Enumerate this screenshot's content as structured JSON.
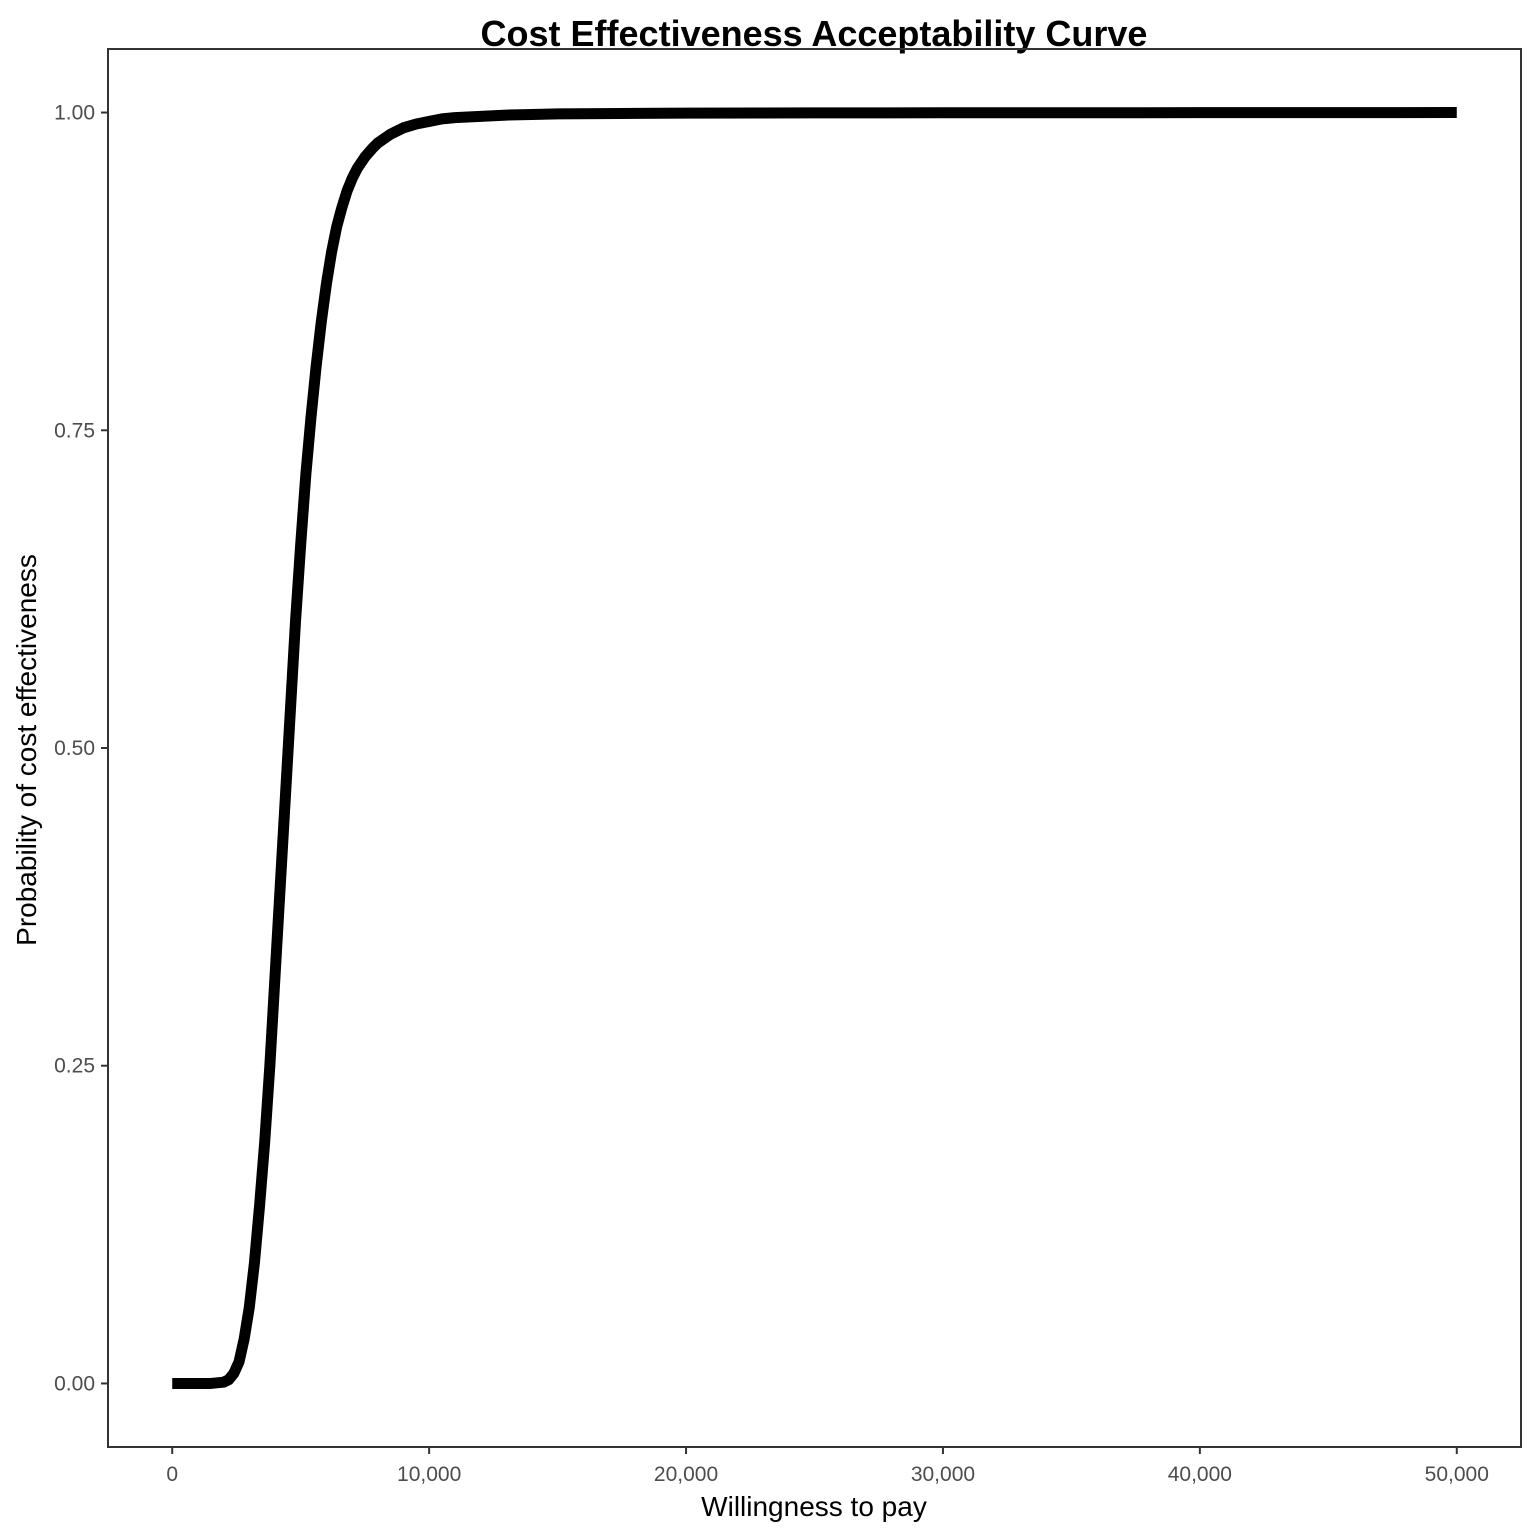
{
  "chart_data": {
    "type": "line",
    "title": "Cost Effectiveness Acceptability Curve",
    "xlabel": "Willingness to pay",
    "ylabel": "Probability of cost effectiveness",
    "xlim": [
      -2500,
      52500
    ],
    "ylim": [
      -0.05,
      1.05
    ],
    "x_ticks": [
      {
        "value": 0,
        "label": "0"
      },
      {
        "value": 10000,
        "label": "10,000"
      },
      {
        "value": 20000,
        "label": "20,000"
      },
      {
        "value": 30000,
        "label": "30,000"
      },
      {
        "value": 40000,
        "label": "40,000"
      },
      {
        "value": 50000,
        "label": "50,000"
      }
    ],
    "y_ticks": [
      {
        "value": 0,
        "label": "0.00"
      },
      {
        "value": 0.25,
        "label": "0.25"
      },
      {
        "value": 0.5,
        "label": "0.50"
      },
      {
        "value": 0.75,
        "label": "0.75"
      },
      {
        "value": 1,
        "label": "1.00"
      }
    ],
    "grid": false,
    "line_color": "#000000",
    "series": [
      {
        "x": [
          0,
          1000,
          1500,
          2000,
          2200,
          2400,
          2600,
          2800,
          3000,
          3200,
          3400,
          3600,
          3800,
          4000,
          4200,
          4400,
          4600,
          4800,
          5000,
          5200,
          5400,
          5600,
          5800,
          6000,
          6200,
          6400,
          6600,
          6800,
          7000,
          7200,
          7500,
          7800,
          8000,
          8500,
          9000,
          9500,
          10000,
          10500,
          11000,
          12000,
          13000,
          14000,
          15000,
          17500,
          20000,
          25000,
          30000,
          40000,
          50000
        ],
        "y": [
          0,
          0,
          0,
          0.001,
          0.003,
          0.008,
          0.017,
          0.035,
          0.06,
          0.095,
          0.14,
          0.19,
          0.25,
          0.32,
          0.39,
          0.46,
          0.53,
          0.6,
          0.66,
          0.715,
          0.76,
          0.8,
          0.835,
          0.865,
          0.89,
          0.91,
          0.925,
          0.938,
          0.948,
          0.956,
          0.965,
          0.972,
          0.976,
          0.983,
          0.988,
          0.991,
          0.993,
          0.995,
          0.996,
          0.997,
          0.998,
          0.9985,
          0.999,
          0.9993,
          0.9995,
          0.9997,
          0.9998,
          0.9999,
          1
        ]
      }
    ]
  }
}
